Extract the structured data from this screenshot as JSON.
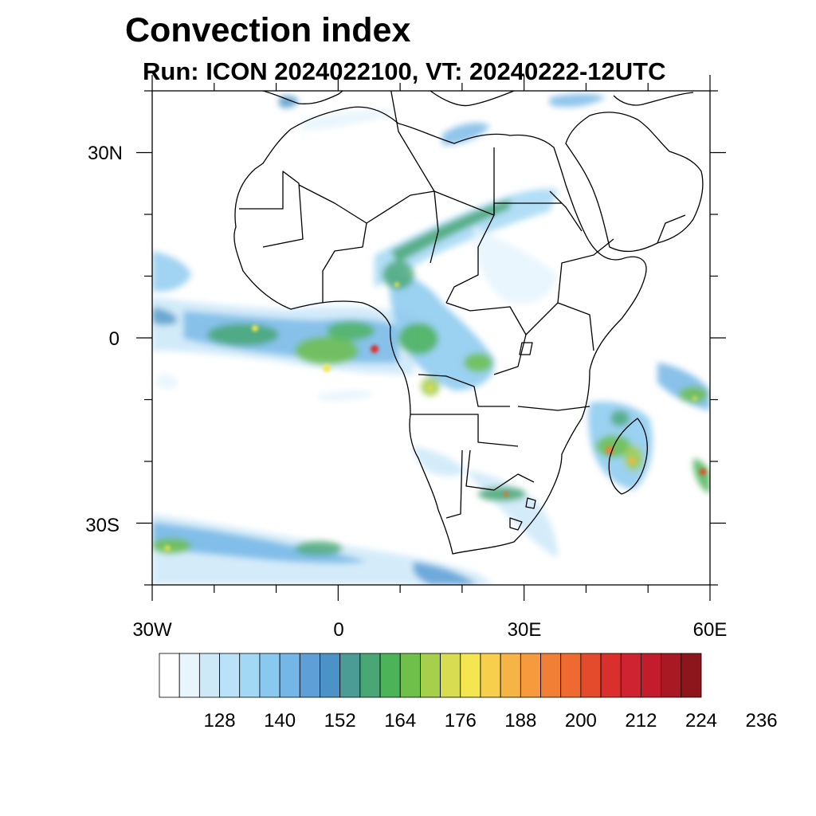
{
  "header": {
    "title": "Convection index",
    "subtitle": "Run: ICON 2024022100,  VT: 20240222-12UTC"
  },
  "map": {
    "lon_range": [
      -30,
      60
    ],
    "lat_range": [
      -40,
      40
    ],
    "lat_tick_labels": [
      "30N",
      "0",
      "30S"
    ],
    "lon_tick_labels": [
      "30W",
      "0",
      "30E",
      "60E"
    ]
  },
  "colorbar": {
    "colors": [
      "#ffffff",
      "#e8f5fd",
      "#cde9f8",
      "#b9e1f7",
      "#a3d8f5",
      "#8ac9ef",
      "#74b6e6",
      "#5d9fd6",
      "#4b93c6",
      "#4a9c95",
      "#48a774",
      "#4cb358",
      "#6ec04b",
      "#a6cf4c",
      "#d8dc50",
      "#f4e651",
      "#f8cf4c",
      "#f6b346",
      "#f69a3d",
      "#f27f36",
      "#ee6a31",
      "#e44b2c",
      "#db2f2e",
      "#cf2331",
      "#c21c2d",
      "#a81924",
      "#8c161c"
    ],
    "tick_labels": [
      "128",
      "140",
      "152",
      "164",
      "176",
      "188",
      "200",
      "212",
      "224",
      "236"
    ]
  }
}
